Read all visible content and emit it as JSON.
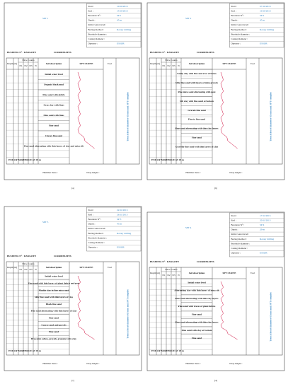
{
  "common": {
    "start": "Start :",
    "end": "End :",
    "borehole": "Borehole N° :",
    "depth": "Depth :",
    "water": "Initial water level :",
    "method": "Boring method :",
    "diameter": "Borehole diameter :",
    "casing": "Casing diameter :",
    "operator": "Operator :",
    "business": "BUSINESS N° : DANGOTE",
    "coordinates": "COORDINATES",
    "blow": "Blow counts",
    "n1": "N1",
    "n2": "N2",
    "n3": "N3",
    "n": "N",
    "depth_col": "Depth (m)",
    "soil": "Soil description",
    "curve": "SPT CURVE",
    "remarks": "Tool",
    "trench": "Trench list of diameter 63 mm and SPT complet",
    "hammer": "Hammer mass :",
    "drop": "Drop height :",
    "method_value": "Rotary drilling"
  },
  "panels": [
    {
      "title": "SPT 1",
      "label": "(a)",
      "start_date": "10/10/2013",
      "end_date": "14/10/2013",
      "borehole_id": "SP 1",
      "depth_value": "45 m",
      "operator_value": "ESSOR",
      "end_text": "END OF BOREHOLE AT 45 m",
      "soil": [
        "Initial water level",
        "Organic black mud",
        "Fine sand with debris",
        "Gray clay with fines",
        "Fine sand with fines",
        "Fine sand",
        "Clayey fine sand",
        "Fine sand alternating with thin layers of clay and mica silt"
      ]
    },
    {
      "title": "SPT 2",
      "label": "(b)",
      "start_date": "07/10/2013",
      "end_date": "10/10/2013",
      "borehole_id": "SP 2",
      "depth_value": "45 m",
      "operator_value": "ESSOR",
      "end_text": "END OF BOREHOLE AT 45 m",
      "soil": [
        "Sandy clay with fine and a lot of bones",
        "Silty fine sand with layers of mica gravels",
        "Fine mica sand alternating with peat",
        "Silt clay with fine sand at bottom",
        "Gravels fine sand",
        "Fine to fine sand",
        "Fine sand alternating with thin clay layers",
        "Fine sand",
        "Gravelly fine sand with thin layers of clay"
      ]
    },
    {
      "title": "SPT 3",
      "label": "(c)",
      "start_date": "22/11/2013",
      "end_date": "26/11/2013",
      "borehole_id": "SP 3",
      "depth_value": "45 m",
      "operator_value": "ESSOR",
      "end_text": "END OF BOREHOLE AT 45 m",
      "soil": [
        "Initial water level",
        "Fine sand with thin layers of plant debris and peat",
        "Muddy clay in fine mica sand",
        "Silty fine sand with thin layers of clay",
        "Black fine sand",
        "Fine sand alternating with thin layers of clay",
        "Fine sand",
        "Coarse sand and gravels",
        "Fine sand",
        "Brownish yellow, greyish, granular silty clay"
      ]
    },
    {
      "title": "SPT 4",
      "label": "(d)",
      "start_date": "17/11/2013",
      "end_date": "20/11/2013",
      "borehole_id": "SP 4",
      "depth_value": "29 m",
      "operator_value": "ESSOR",
      "end_text": "END OF BOREHOLE AT 29 m",
      "soil": [
        "Initial water level",
        "Alternating clay with thin layers of mica silt",
        "Fine sand alternating with thin clay layers",
        "Fine sand with traces of plant debris",
        "Fine sand",
        "Fine sand alternating with thin clay layers",
        "Fine sand with clay at bottom",
        "Fine sand"
      ]
    }
  ]
}
